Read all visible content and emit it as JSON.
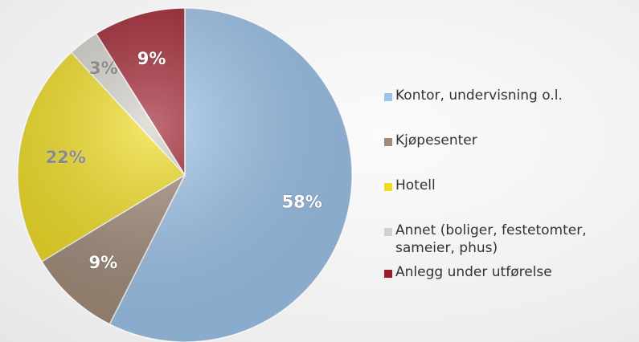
{
  "chart_data": {
    "type": "pie",
    "categories": [
      "Kontor, undervisning o.l.",
      "Kjøpesenter",
      "Hotell",
      "Annet (boliger, festetomter, sameier, phus)",
      "Anlegg under utførelse"
    ],
    "values": [
      58,
      9,
      22,
      3,
      9
    ],
    "value_labels": [
      "58%",
      "9%",
      "22%",
      "3%",
      "9%"
    ],
    "colors": [
      "#9cc3ea",
      "#a08a78",
      "#f0dc1c",
      "#d2d0c8",
      "#9e1c2a"
    ],
    "legend": "right"
  }
}
